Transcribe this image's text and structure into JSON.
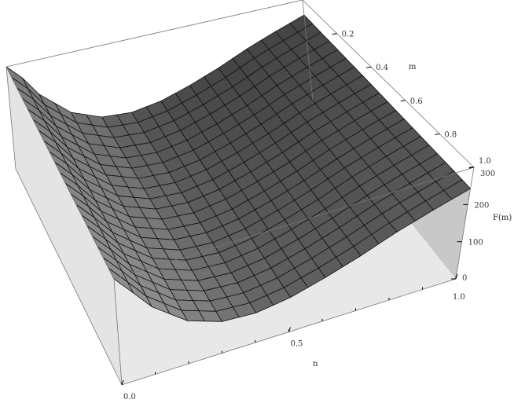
{
  "chart_data": {
    "type": "surface",
    "title": "",
    "xlabel": "n",
    "ylabel": "m",
    "zlabel": "F(m)",
    "xlim": [
      0,
      1
    ],
    "ylim": [
      0,
      1
    ],
    "zlim": [
      0,
      300
    ],
    "x_ticks": [
      "0.0",
      "0.5",
      "1.0"
    ],
    "y_ticks": [
      "0.2",
      "0.4",
      "0.6",
      "0.8",
      "1.0"
    ],
    "z_ticks": [
      "0",
      "100",
      "200",
      "300"
    ],
    "surface_profile_along_n": {
      "n": [
        0,
        0.1,
        0.2,
        0.3,
        0.4,
        0.5,
        0.6,
        0.7,
        0.8,
        0.9,
        1.0
      ],
      "F": [
        300,
        190,
        120,
        88,
        82,
        95,
        120,
        150,
        185,
        215,
        243
      ]
    },
    "grid_on": false,
    "surface_color": "#5e5e5e",
    "box": true
  }
}
